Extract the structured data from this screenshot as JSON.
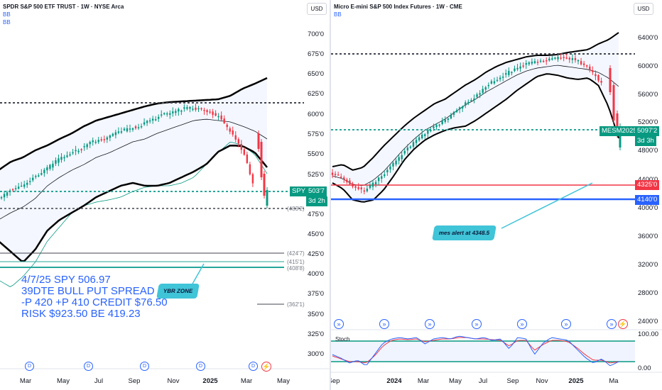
{
  "left": {
    "title": "SPDR S&P 500 ETF TRUST · 1W · NYSE Arca",
    "indicator1": "BB",
    "indicator2": "BB",
    "currency": "USD",
    "price_labels": [
      "700'0",
      "675'0",
      "650'0",
      "625'0",
      "600'0",
      "575'0",
      "550'0",
      "525'0",
      "475'0",
      "450'0",
      "425'0",
      "400'0",
      "375'0",
      "350'0",
      "325'0",
      "300'0"
    ],
    "symbol_tag": "SPY",
    "price_tag": "503'7",
    "countdown": "3d 2h",
    "level_labels": [
      "(483'2)",
      "(424'7)",
      "(415'1)",
      "(408'8)",
      "(362'1)"
    ],
    "note": "4/7/25 SPY 506.97\n39DTE BULL PUT SPREAD\n-P 420 +P 410 CREDIT $76.50\nRISK $923.50 BE 419.23",
    "callout": "YBR ZONE",
    "event_icon": "D",
    "flash_icon": "⚡",
    "x_labels": [
      "Mar",
      "May",
      "Jul",
      "Sep",
      "Nov",
      "2025",
      "Mar",
      "May"
    ]
  },
  "right": {
    "title": "Micro E-mini S&P 500 Index Futures · 1W · CME",
    "indicator1": "BB",
    "currency": "USD",
    "price_labels": [
      "6400'0",
      "6000'0",
      "5600'0",
      "5200'0",
      "4800'0",
      "4400'0",
      "4000'0",
      "3600'0",
      "3200'0",
      "2800'0",
      "2400'0"
    ],
    "symbol_tag": "MESM2025",
    "price_tag": "5097'2",
    "countdown": "3d 3h",
    "level1": "4325'0",
    "level2": "4140'0",
    "callout": "mes alert at 4348.5",
    "stoch_label": "Stoch",
    "stoch_levels": [
      "100.00",
      "0.00"
    ],
    "arrow_icon": "»",
    "flash_icon": "⚡",
    "x_labels": [
      "Sep",
      "2024",
      "Mar",
      "May",
      "Jul",
      "Sep",
      "Nov",
      "2025",
      "Ma"
    ]
  },
  "colors": {
    "up": "#089981",
    "down": "#f23645",
    "accent": "#2962ff",
    "teal_level": "#26a69a"
  }
}
